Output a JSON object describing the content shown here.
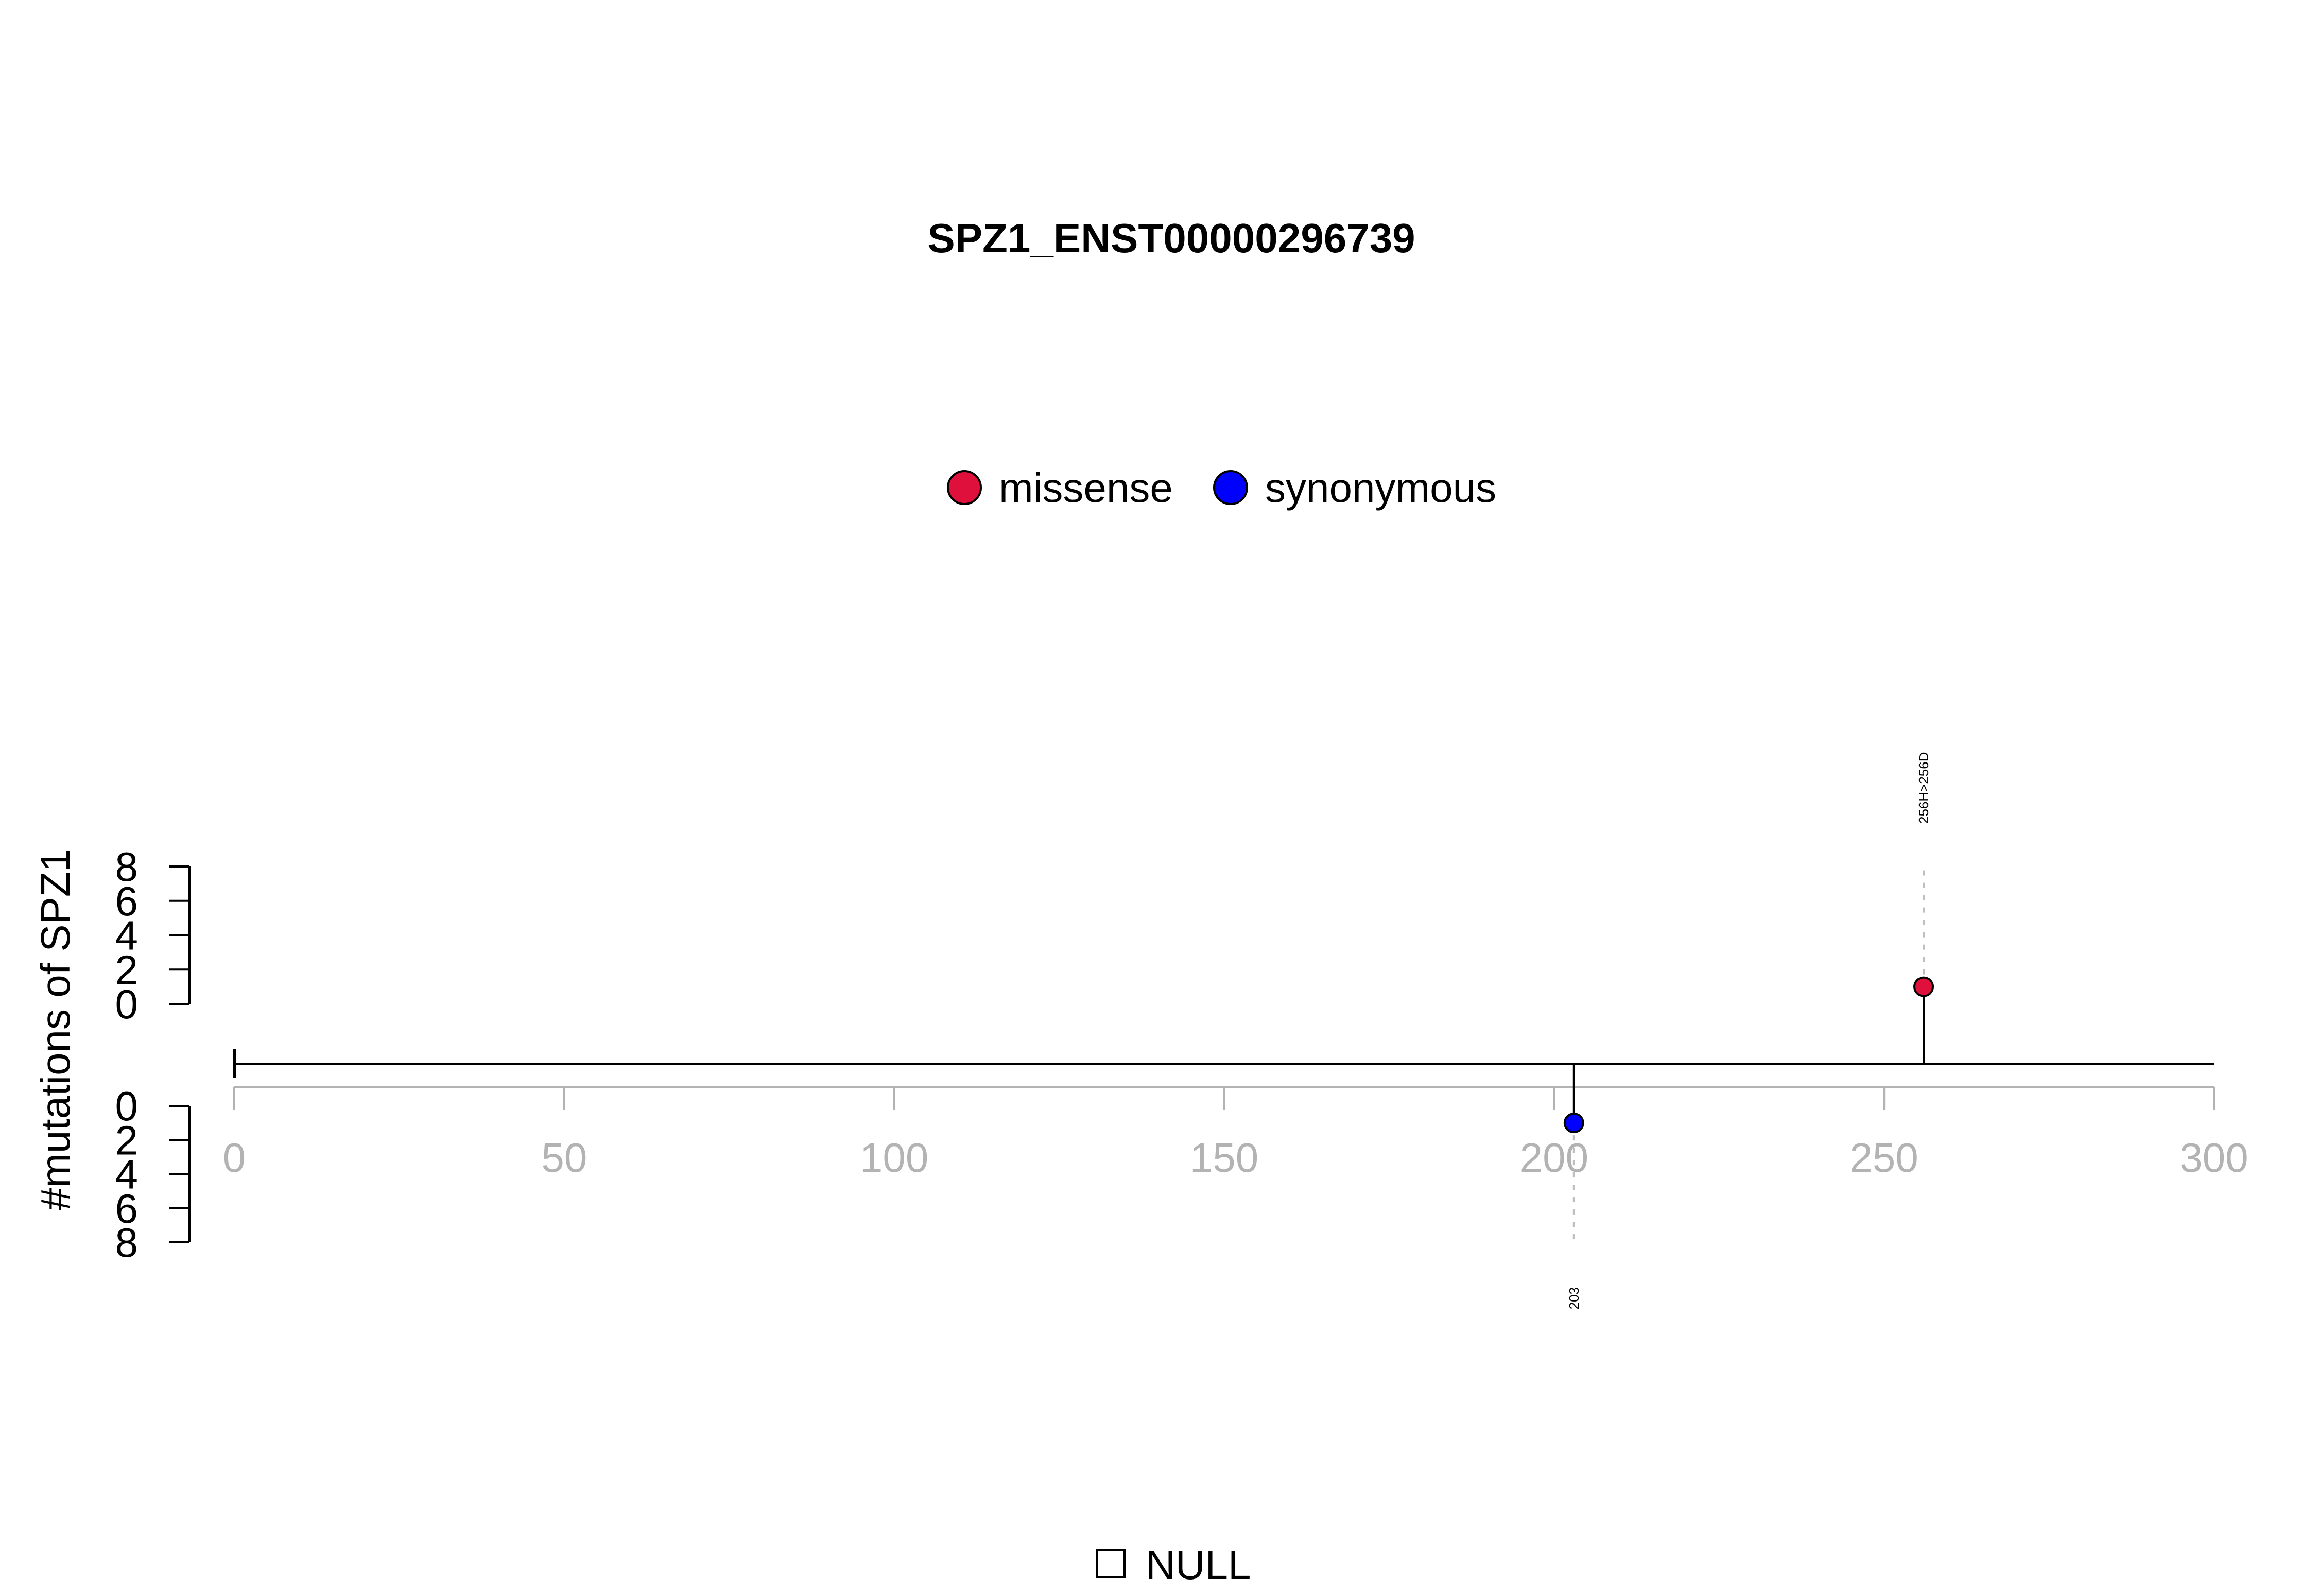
{
  "chart_data": {
    "type": "lollipop",
    "title": "SPZ1_ENST00000296739",
    "ylabel": "#mutations of SPZ1",
    "protein_length": 300,
    "xlim": [
      0,
      300
    ],
    "x_ticks": [
      0,
      50,
      100,
      150,
      200,
      250,
      300
    ],
    "ylim_top": [
      0,
      8
    ],
    "ylim_bottom": [
      0,
      8
    ],
    "y_ticks_top": [
      0,
      2,
      4,
      6,
      8
    ],
    "y_ticks_bottom": [
      0,
      2,
      4,
      6,
      8
    ],
    "legend": [
      {
        "label": "missense",
        "color": "#e0103c"
      },
      {
        "label": "synonymous",
        "color": "#0000ff"
      }
    ],
    "mutations": [
      {
        "position": 256,
        "count": 1,
        "type": "missense",
        "side": "top",
        "label": "256H>256D",
        "color": "#e0103c"
      },
      {
        "position": 203,
        "count": 1,
        "type": "synonymous",
        "side": "bottom",
        "label": "203",
        "color": "#0000ff"
      }
    ],
    "domain_legend": "NULL"
  }
}
